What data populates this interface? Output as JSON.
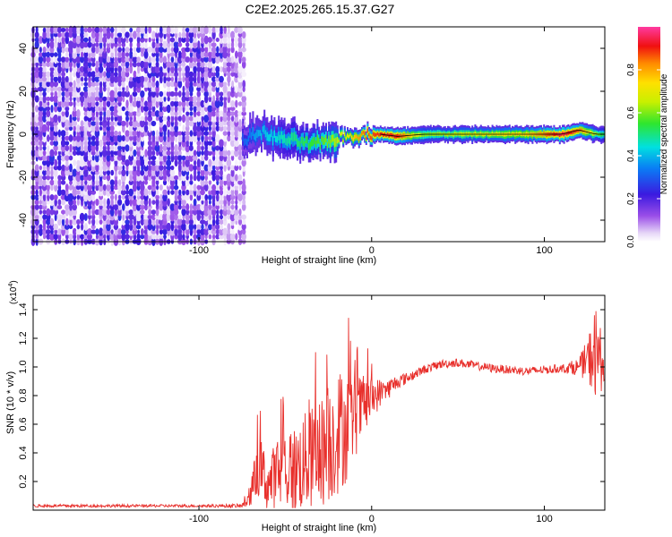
{
  "title": "C2E2.2025.265.15.37.G27",
  "chart_data": [
    {
      "type": "heatmap",
      "xlabel": "Height of straight line (km)",
      "ylabel": "Frequency (Hz)",
      "xlim": [
        -196,
        135
      ],
      "ylim": [
        -50,
        50
      ],
      "xticks": [
        -100,
        0,
        100
      ],
      "xtick_labels": [
        "-100",
        "0",
        "100"
      ],
      "yticks": [
        -40,
        -20,
        0,
        20,
        40
      ],
      "ytick_labels": [
        "-40",
        "-20",
        "0",
        "20",
        "40"
      ],
      "colorbar": {
        "label": "Normalized spectral amplitude",
        "range": [
          0,
          1
        ],
        "ticks": [
          0,
          0.2,
          0.4,
          0.6,
          0.8
        ],
        "tick_labels": [
          "0.0",
          "0.2",
          "0.4",
          "0.6",
          "0.8"
        ],
        "colormap": "hsv-like: white, violet, blue, cyan, green, yellow, orange, red, pink"
      },
      "regions": [
        {
          "name": "noise",
          "x_range": [
            -196,
            -72
          ],
          "freq_range": [
            -50,
            50
          ],
          "amplitude_range": [
            0.02,
            0.25
          ]
        },
        {
          "name": "tracked-signal",
          "x_range": [
            -72,
            135
          ],
          "center_freq": 0,
          "amplitude_range": [
            0.35,
            0.95
          ]
        }
      ],
      "signal_track": {
        "x": [
          -75,
          -65,
          -55,
          -45,
          -35,
          -25,
          -15,
          -5,
          5,
          15,
          30,
          50,
          70,
          90,
          110,
          120,
          130,
          135
        ],
        "freq": [
          -3,
          1,
          -2,
          -3,
          -5,
          -3,
          -1,
          0,
          0,
          -1,
          0,
          0,
          0,
          0,
          0,
          2,
          0,
          0
        ],
        "amplitude": [
          0.3,
          0.4,
          0.45,
          0.5,
          0.55,
          0.6,
          0.7,
          0.85,
          0.9,
          0.9,
          0.6,
          0.65,
          0.7,
          0.75,
          0.95,
          0.85,
          0.6,
          0.5
        ]
      }
    },
    {
      "type": "line",
      "xlabel": "Height of straight line (km)",
      "ylabel": "SNR (10 * v/v)",
      "y_multiplier": "(x10",
      "y_multiplier_exp": "4",
      "xlim": [
        -196,
        135
      ],
      "ylim": [
        0,
        15000
      ],
      "xticks": [
        -100,
        0,
        100
      ],
      "xtick_labels": [
        "-100",
        "0",
        "100"
      ],
      "yticks": [
        2000,
        4000,
        6000,
        8000,
        10000,
        12000,
        14000
      ],
      "ytick_labels": [
        "0.2",
        "0.4",
        "0.6",
        "0.8",
        "1.0",
        "1.2",
        "1.4"
      ],
      "color": "#e8302c",
      "series": [
        {
          "x": [
            -196,
            -160,
            -120,
            -90,
            -75,
            -70,
            -65,
            -60,
            -55,
            -50,
            -45,
            -40,
            -35,
            -30,
            -25,
            -20,
            -15,
            -10,
            -5,
            0,
            5,
            10,
            15,
            20,
            30,
            40,
            50,
            60,
            70,
            80,
            90,
            100,
            110,
            120,
            125,
            130,
            135
          ],
          "y": [
            300,
            300,
            300,
            300,
            300,
            1200,
            3000,
            1800,
            2400,
            3000,
            2700,
            3300,
            3600,
            4000,
            4500,
            5500,
            5800,
            6500,
            7200,
            7800,
            8200,
            8500,
            9000,
            9200,
            9800,
            10200,
            10300,
            10100,
            9900,
            9800,
            9700,
            9800,
            9900,
            10000,
            10500,
            11000,
            10000
          ],
          "y_spread": [
            100,
            100,
            100,
            100,
            150,
            1200,
            2200,
            2000,
            2500,
            3000,
            3200,
            3400,
            3600,
            3800,
            4200,
            4500,
            4000,
            3000,
            2200,
            1500,
            1000,
            700,
            500,
            400,
            300,
            300,
            300,
            300,
            300,
            300,
            300,
            300,
            300,
            600,
            1500,
            3500,
            1200
          ]
        }
      ]
    }
  ]
}
